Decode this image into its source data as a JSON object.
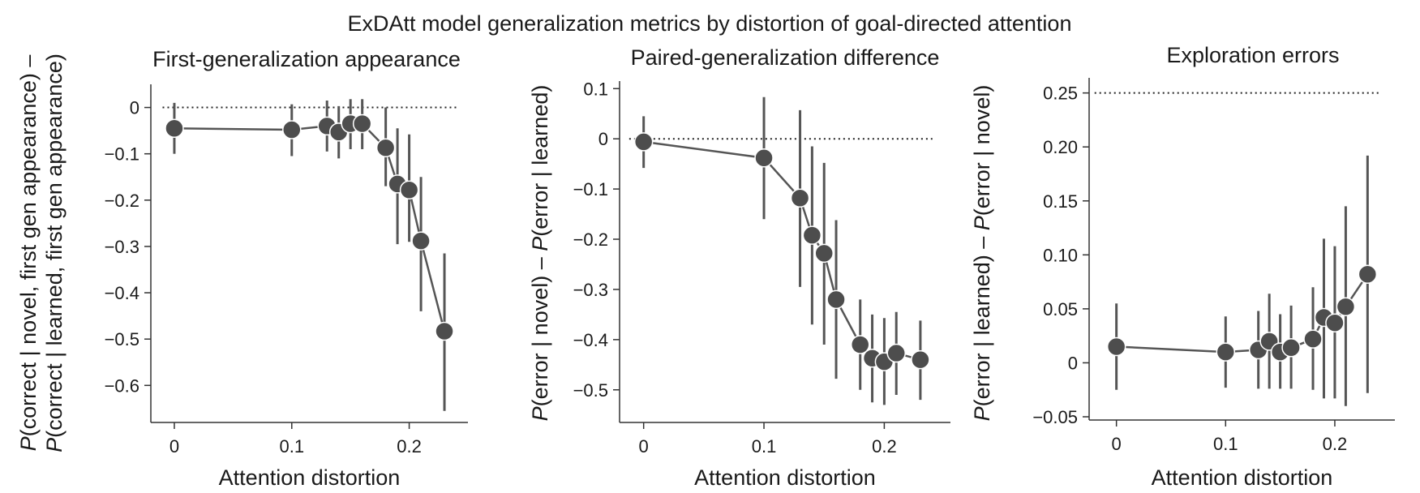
{
  "figure": {
    "title": "ExDAtt model generalization metrics by distortion of goal-directed attention"
  },
  "chart_data": [
    {
      "type": "scatter",
      "title": "First-generalization appearance",
      "xlabel": "Attention distortion",
      "ylabel_lines": [
        [
          "P",
          "(correct | novel, first gen appearance) –"
        ],
        [
          "P",
          "(correct | learned, first gen appearance)"
        ]
      ],
      "xlim": [
        -0.02,
        0.25
      ],
      "ylim": [
        -0.68,
        0.05
      ],
      "xticks": [
        0,
        0.1,
        0.2
      ],
      "xtick_labels": [
        "0",
        "0.1",
        "0.2"
      ],
      "yticks": [
        0,
        -0.1,
        -0.2,
        -0.3,
        -0.4,
        -0.5,
        -0.6
      ],
      "ytick_labels": [
        "0",
        "−0.1",
        "−0.2",
        "−0.3",
        "−0.4",
        "−0.5",
        "−0.6"
      ],
      "reference_y": 0,
      "reference_x_range": [
        -0.01,
        0.24
      ],
      "points": [
        {
          "x": 0.0,
          "y": -0.045,
          "lo": -0.1,
          "hi": 0.01
        },
        {
          "x": 0.1,
          "y": -0.048,
          "lo": -0.105,
          "hi": 0.007
        },
        {
          "x": 0.13,
          "y": -0.04,
          "lo": -0.095,
          "hi": 0.015
        },
        {
          "x": 0.14,
          "y": -0.053,
          "lo": -0.11,
          "hi": 0.003
        },
        {
          "x": 0.15,
          "y": -0.035,
          "lo": -0.09,
          "hi": 0.018
        },
        {
          "x": 0.16,
          "y": -0.035,
          "lo": -0.09,
          "hi": 0.018
        },
        {
          "x": 0.18,
          "y": -0.087,
          "lo": -0.17,
          "hi": 0.0
        },
        {
          "x": 0.19,
          "y": -0.165,
          "lo": -0.295,
          "hi": -0.045
        },
        {
          "x": 0.2,
          "y": -0.178,
          "lo": -0.29,
          "hi": -0.058
        },
        {
          "x": 0.21,
          "y": -0.288,
          "lo": -0.44,
          "hi": -0.15
        },
        {
          "x": 0.23,
          "y": -0.483,
          "lo": -0.655,
          "hi": -0.315
        }
      ]
    },
    {
      "type": "scatter",
      "title": "Paired-generalization difference",
      "xlabel": "Attention distortion",
      "ylabel_lines": [
        [
          "P",
          "(error | novel) – ",
          "P",
          "(error | learned)"
        ]
      ],
      "xlim": [
        -0.02,
        0.255
      ],
      "ylim": [
        -0.565,
        0.115
      ],
      "xticks": [
        0,
        0.1,
        0.2
      ],
      "xtick_labels": [
        "0",
        "0.1",
        "0.2"
      ],
      "yticks": [
        0.1,
        0,
        -0.1,
        -0.2,
        -0.3,
        -0.4,
        -0.5
      ],
      "ytick_labels": [
        "0.1",
        "0",
        "−0.1",
        "−0.2",
        "−0.3",
        "−0.4",
        "−0.5"
      ],
      "reference_y": 0,
      "reference_x_range": [
        -0.012,
        0.24
      ],
      "points": [
        {
          "x": 0.0,
          "y": -0.006,
          "lo": -0.058,
          "hi": 0.045
        },
        {
          "x": 0.1,
          "y": -0.038,
          "lo": -0.16,
          "hi": 0.083
        },
        {
          "x": 0.13,
          "y": -0.118,
          "lo": -0.295,
          "hi": 0.057
        },
        {
          "x": 0.14,
          "y": -0.192,
          "lo": -0.37,
          "hi": -0.015
        },
        {
          "x": 0.15,
          "y": -0.228,
          "lo": -0.41,
          "hi": -0.048
        },
        {
          "x": 0.16,
          "y": -0.32,
          "lo": -0.478,
          "hi": -0.162
        },
        {
          "x": 0.18,
          "y": -0.41,
          "lo": -0.5,
          "hi": -0.32
        },
        {
          "x": 0.19,
          "y": -0.437,
          "lo": -0.525,
          "hi": -0.35
        },
        {
          "x": 0.2,
          "y": -0.444,
          "lo": -0.53,
          "hi": -0.357
        },
        {
          "x": 0.21,
          "y": -0.427,
          "lo": -0.51,
          "hi": -0.345
        },
        {
          "x": 0.23,
          "y": -0.44,
          "lo": -0.52,
          "hi": -0.362
        }
      ]
    },
    {
      "type": "scatter",
      "title": "Exploration errors",
      "xlabel": "Attention distortion",
      "ylabel_lines": [
        [
          "P",
          "(error | learned) – ",
          "P",
          "(error | novel)"
        ]
      ],
      "xlim": [
        -0.025,
        0.255
      ],
      "ylim": [
        -0.053,
        0.264
      ],
      "xticks": [
        0,
        0.1,
        0.2
      ],
      "xtick_labels": [
        "0",
        "0.1",
        "0.2"
      ],
      "yticks": [
        0.25,
        0.2,
        0.15,
        0.1,
        0.05,
        0,
        -0.05
      ],
      "ytick_labels": [
        "0.25",
        "0.20",
        "0.15",
        "0.10",
        "0.05",
        "0",
        "−0.05"
      ],
      "reference_y": 0.25,
      "reference_x_range": [
        -0.02,
        0.24
      ],
      "points": [
        {
          "x": 0.0,
          "y": 0.015,
          "lo": -0.025,
          "hi": 0.055
        },
        {
          "x": 0.1,
          "y": 0.01,
          "lo": -0.023,
          "hi": 0.043
        },
        {
          "x": 0.13,
          "y": 0.012,
          "lo": -0.024,
          "hi": 0.048
        },
        {
          "x": 0.14,
          "y": 0.02,
          "lo": -0.024,
          "hi": 0.064
        },
        {
          "x": 0.15,
          "y": 0.01,
          "lo": -0.024,
          "hi": 0.045
        },
        {
          "x": 0.16,
          "y": 0.014,
          "lo": -0.024,
          "hi": 0.053
        },
        {
          "x": 0.18,
          "y": 0.022,
          "lo": -0.025,
          "hi": 0.07
        },
        {
          "x": 0.19,
          "y": 0.042,
          "lo": -0.033,
          "hi": 0.115
        },
        {
          "x": 0.2,
          "y": 0.037,
          "lo": -0.033,
          "hi": 0.108
        },
        {
          "x": 0.21,
          "y": 0.052,
          "lo": -0.04,
          "hi": 0.145
        },
        {
          "x": 0.23,
          "y": 0.082,
          "lo": -0.028,
          "hi": 0.192
        }
      ]
    }
  ]
}
